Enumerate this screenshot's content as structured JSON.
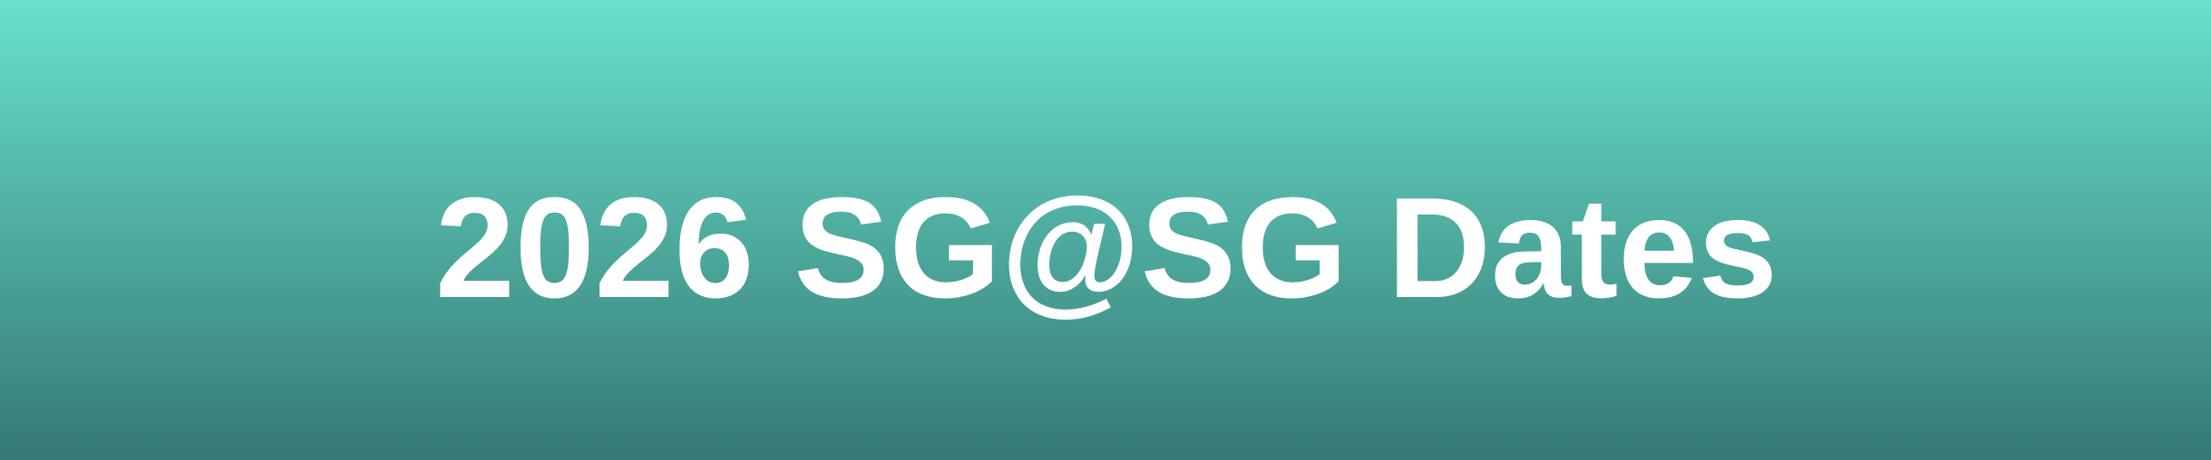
{
  "banner": {
    "title": "2026 SG@SG Dates",
    "colors": {
      "gradient_top": "#69E1CC",
      "gradient_bottom": "#357874",
      "text": "#FFFFFF"
    }
  }
}
